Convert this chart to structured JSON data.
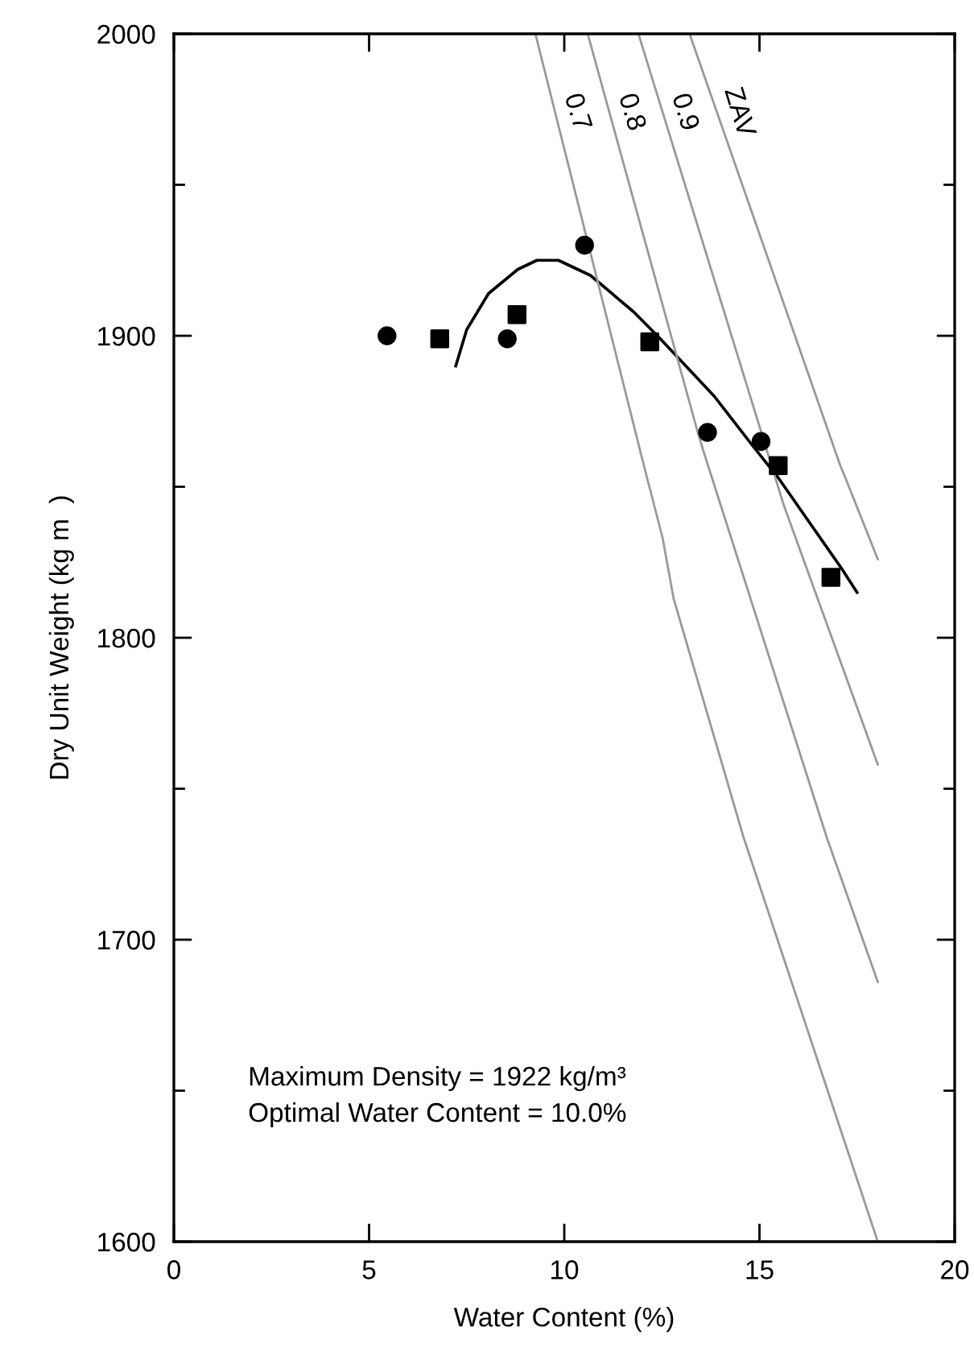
{
  "chart_data": {
    "type": "scatter",
    "xlabel": "Water Content (%)",
    "ylabel": "Dry Unit Weight (kg m  )",
    "xlim": [
      0,
      20
    ],
    "ylim": [
      1600,
      2000
    ],
    "xticks": [
      0,
      5,
      10,
      15,
      20
    ],
    "yticks": [
      1600,
      {
        "value": 1650,
        "label": null
      },
      1700,
      {
        "value": 1750,
        "label": null
      },
      1800,
      {
        "value": 1850,
        "label": null
      },
      1900,
      {
        "value": 1950,
        "label": null
      },
      2000
    ],
    "grid": false,
    "legend": false,
    "series": [
      {
        "type": "scatter",
        "marker": "circle",
        "color": "#000000",
        "x": [
          5.46,
          8.54,
          10.52,
          13.67,
          15.04
        ],
        "values": [
          1900,
          1899,
          1930,
          1868,
          1865
        ]
      },
      {
        "type": "scatter",
        "marker": "square",
        "color": "#000000",
        "x": [
          6.81,
          8.79,
          12.19,
          15.48,
          16.83
        ],
        "values": [
          1899,
          1907,
          1898,
          1857,
          1820
        ]
      },
      {
        "type": "line",
        "marker": "none",
        "color": "#000000",
        "x": [
          7.22,
          7.5,
          8.06,
          8.81,
          9.3,
          9.85,
          10.67,
          11.77,
          12.46,
          13.84,
          14.8,
          15.48,
          17.1,
          17.5
        ],
        "values": [
          1890,
          1902,
          1914,
          1922,
          1925,
          1925,
          1920,
          1908,
          1899,
          1880,
          1864,
          1853,
          1823,
          1815
        ]
      },
      {
        "type": "line",
        "marker": "none",
        "name": "0.7",
        "color": "#999999",
        "x": [
          9.26,
          12.04,
          12.52,
          12.8,
          14.59,
          18.03
        ],
        "values": [
          2000,
          1857,
          1833,
          1813,
          1734,
          1600
        ]
      },
      {
        "type": "line",
        "marker": "none",
        "name": "0.8",
        "color": "#999999",
        "x": [
          10.6,
          13.42,
          13.56,
          16.72,
          18.03
        ],
        "values": [
          2000,
          1868,
          1862,
          1734,
          1686
        ]
      },
      {
        "type": "line",
        "marker": "none",
        "name": "0.9",
        "color": "#999999",
        "x": [
          11.9,
          15.62,
          18.03
        ],
        "values": [
          2000,
          1844,
          1758
        ]
      },
      {
        "type": "line",
        "marker": "none",
        "name": "ZAV",
        "color": "#999999",
        "x": [
          13.21,
          17.07,
          17.2,
          18.03
        ],
        "values": [
          2000,
          1857,
          1853,
          1826
        ]
      }
    ],
    "annotations": [
      "Maximum Density = 1922 kg/m³",
      "Optimal Water Content = 10.0%"
    ]
  }
}
